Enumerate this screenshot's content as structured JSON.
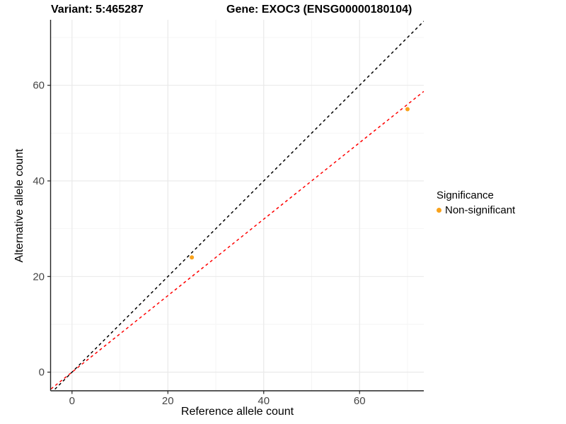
{
  "title": {
    "variant": "Variant: 5:465287",
    "gene": "Gene: EXOC3 (ENSG00000180104)"
  },
  "axes": {
    "x_label": "Reference allele count",
    "y_label": "Alternative allele count",
    "x_tick_labels": [
      "0",
      "20",
      "40",
      "60"
    ],
    "y_tick_labels": [
      "0",
      "20",
      "40",
      "60"
    ]
  },
  "legend": {
    "title": "Significance",
    "items": [
      {
        "label": "Non-significant",
        "color": "#F9A21B",
        "marker": "circle-icon"
      }
    ]
  },
  "colors": {
    "point_orange": "#F9A21B",
    "identity_line": "#000000",
    "ratio_line": "#FF0000",
    "grid_major": "#e9e9e9",
    "grid_minor": "#f3f3f3",
    "axis_line": "#222222",
    "tick_text": "#444444"
  },
  "chart_data": {
    "type": "scatter",
    "title": "Variant: 5:465287    Gene: EXOC3 (ENSG00000180104)",
    "xlabel": "Reference allele count",
    "ylabel": "Alternative allele count",
    "xlim": [
      -4.4,
      73.4
    ],
    "ylim": [
      -3.9,
      73.7
    ],
    "x_major_breaks": [
      0,
      20,
      40,
      60
    ],
    "x_minor_breaks": [
      10,
      30,
      50,
      70
    ],
    "y_major_breaks": [
      0,
      20,
      40,
      60
    ],
    "y_minor_breaks": [
      10,
      30,
      50,
      70
    ],
    "grid": true,
    "legend_position": "right",
    "series": [
      {
        "name": "Non-significant",
        "color": "#F9A21B",
        "points": [
          {
            "x": 25,
            "y": 24
          },
          {
            "x": 70,
            "y": 55
          }
        ]
      }
    ],
    "lines": [
      {
        "name": "identity-line",
        "slope": 1,
        "intercept": 0,
        "color": "#000000",
        "style": "dashed"
      },
      {
        "name": "allelic-ratio-line",
        "slope": 0.8,
        "intercept": 0,
        "color": "#FF0000",
        "style": "dashed"
      }
    ]
  }
}
